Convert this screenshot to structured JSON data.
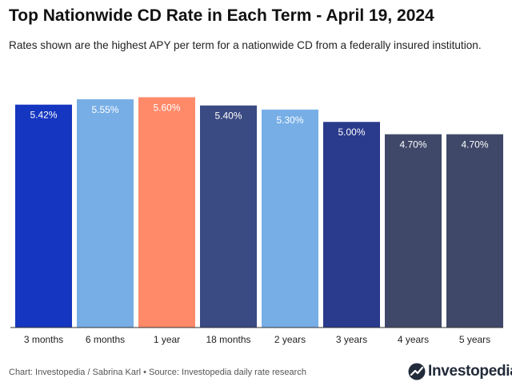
{
  "title": "Top Nationwide CD Rate in Each Term - April 19, 2024",
  "subtitle": "Rates shown are the highest APY per term for a nationwide CD from a federally insured institution.",
  "footer": {
    "source": "Chart: Investopedia / Sabrina Karl • Source: Investopedia daily rate research",
    "brand": "Investopedia"
  },
  "chart_data": {
    "type": "bar",
    "categories": [
      "3 months",
      "6 months",
      "1 year",
      "18 months",
      "2 years",
      "3 years",
      "4 years",
      "5 years"
    ],
    "values": [
      5.42,
      5.55,
      5.6,
      5.4,
      5.3,
      5.0,
      4.7,
      4.7
    ],
    "labels": [
      "5.42%",
      "5.55%",
      "5.60%",
      "5.40%",
      "5.30%",
      "5.00%",
      "4.70%",
      "4.70%"
    ],
    "colors": [
      "#1536c0",
      "#77aee6",
      "#ff8a6a",
      "#3a4a82",
      "#77aee6",
      "#2a3a8c",
      "#3f4868",
      "#3f4868"
    ],
    "title": "Top Nationwide CD Rate in Each Term - April 19, 2024",
    "xlabel": "",
    "ylabel": "",
    "ylim": [
      0,
      5.92
    ],
    "grid": false,
    "legend": "none"
  }
}
